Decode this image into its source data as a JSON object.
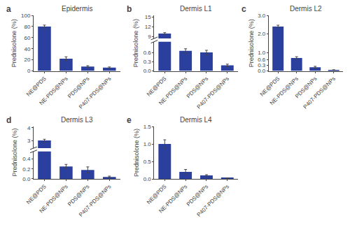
{
  "chart_data": [
    {
      "type": "bar",
      "title": "Epidermis",
      "annotations": [
        "a"
      ],
      "ylabel": "Prednisolone (%)",
      "categories": [
        "NE@PDS",
        "NE-PDS@NPs",
        "PDS@NPs",
        "P407-PDS@NPs"
      ],
      "values": [
        80.0,
        22.0,
        8.0,
        6.0
      ],
      "errors": [
        2.5,
        3.5,
        1.5,
        1.2
      ],
      "color": "#2b3f9e",
      "ylim": [
        0,
        100
      ],
      "yticks": [
        0,
        20,
        40,
        60,
        80,
        100
      ],
      "grid": false
    },
    {
      "type": "bar",
      "title": "Dermis L1",
      "annotations": [
        "b"
      ],
      "ylabel": "Prednisolone (%)",
      "categories": [
        "NE@PDS",
        "NE-PDS@NPs",
        "PDS@NPs",
        "P407-PDS@NPs"
      ],
      "values": [
        10.0,
        0.65,
        0.6,
        0.18
      ],
      "errors": [
        0.25,
        0.07,
        0.07,
        0.04
      ],
      "color": "#2b3f9e",
      "ylim": [
        [
          0,
          0.95
        ],
        [
          8.5,
          15.5
        ]
      ],
      "yticks": [
        [
          {
            "value": 0.0,
            "label": "0.0"
          },
          0.3,
          0.6
        ],
        [
          9,
          12,
          15
        ]
      ],
      "grid": false
    },
    {
      "type": "bar",
      "title": "Dermis L2",
      "annotations": [
        "c"
      ],
      "ylabel": "Prednisolone (%)",
      "categories": [
        "NE@PDS",
        "NE-PDS@NPs",
        "PDS@NPs",
        "P407-PDS@NPs"
      ],
      "values": [
        2.4,
        0.7,
        0.2,
        0.05
      ],
      "errors": [
        0.07,
        0.07,
        0.05,
        0.015
      ],
      "color": "#2b3f9e",
      "ylim": [
        0,
        3
      ],
      "yticks": [
        {
          "value": 0.0,
          "label": "0.0"
        },
        0.3,
        0.6,
        {
          "value": 1.0,
          "label": "1.0"
        },
        {
          "value": 2.0,
          "label": "2.0"
        },
        {
          "value": 3.0,
          "label": "3.0"
        }
      ],
      "grid": false
    },
    {
      "type": "bar",
      "title": "Dermis L3",
      "annotations": [
        "d"
      ],
      "ylabel": "Prednisolone (%)",
      "categories": [
        "NE@PDS",
        "NE-PDS@NPs",
        "PDS@NPs",
        "P407-PDS@NPs"
      ],
      "values": [
        3.0,
        0.25,
        0.18,
        0.04
      ],
      "errors": [
        0.1,
        0.04,
        0.06,
        0.015
      ],
      "color": "#2b3f9e",
      "ylim": [
        [
          0,
          0.55
        ],
        [
          2.4,
          4.1
        ]
      ],
      "yticks": [
        [
          {
            "value": 0.0,
            "label": "0.0"
          },
          0.2,
          0.4
        ],
        [
          3,
          4
        ]
      ],
      "grid": false
    },
    {
      "type": "bar",
      "title": "Dermis L4",
      "annotations": [
        "e"
      ],
      "ylabel": "Prednisolone (%)",
      "categories": [
        "NE@PDS",
        "NE-PDS@NPs",
        "PDS@NPs",
        "P407-PDS@NPs"
      ],
      "values": [
        1.0,
        0.2,
        0.1,
        0.02
      ],
      "errors": [
        0.12,
        0.07,
        0.02,
        0.01
      ],
      "color": "#2b3f9e",
      "ylim": [
        0,
        1.5
      ],
      "yticks": [
        {
          "value": 0.0,
          "label": "0.0"
        },
        0.5,
        {
          "value": 1.0,
          "label": "1.0"
        },
        1.5
      ],
      "grid": false
    }
  ]
}
